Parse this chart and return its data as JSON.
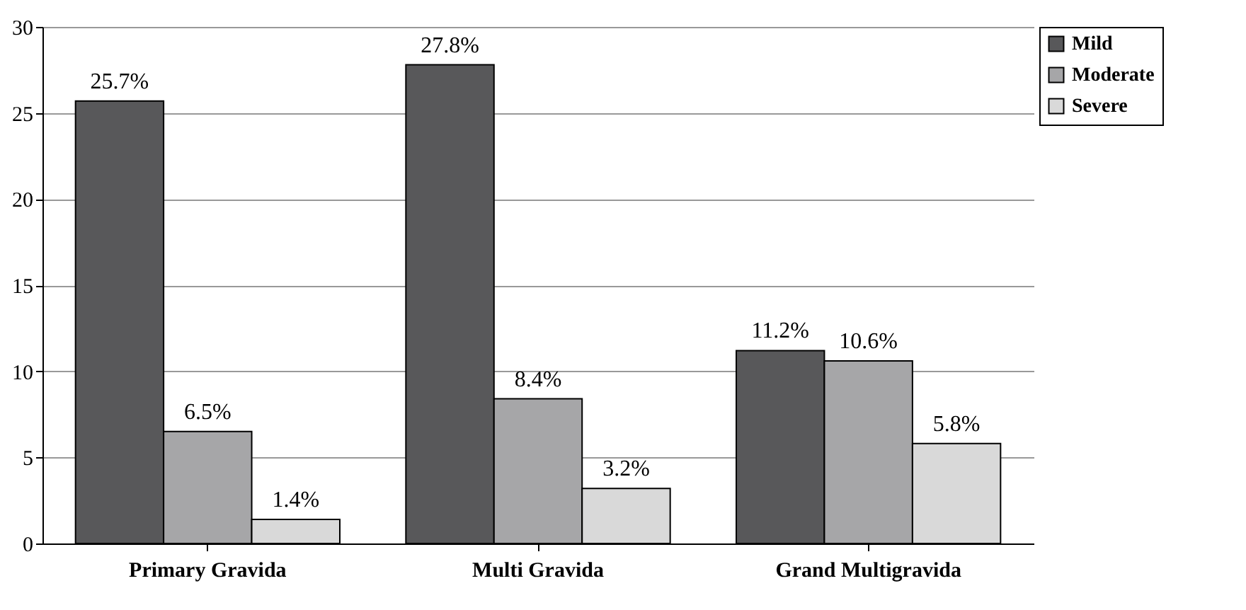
{
  "chart_data": {
    "type": "bar",
    "categories": [
      "Primary Gravida",
      "Multi Gravida",
      "Grand Multigravida"
    ],
    "series": [
      {
        "name": "Mild",
        "color": "#58585a",
        "values": [
          25.7,
          27.8,
          11.2
        ],
        "value_labels": [
          "25.7%",
          "27.8%",
          "11.2%"
        ]
      },
      {
        "name": "Moderate",
        "color": "#a6a6a8",
        "values": [
          6.5,
          8.4,
          10.6
        ],
        "value_labels": [
          "6.5%",
          "8.4%",
          "10.6%"
        ]
      },
      {
        "name": "Severe",
        "color": "#d9d9d9",
        "values": [
          1.4,
          3.2,
          5.8
        ],
        "value_labels": [
          "1.4%",
          "3.2%",
          "5.8%"
        ]
      }
    ],
    "ylim": [
      0,
      30
    ],
    "yticks": [
      0,
      5,
      10,
      15,
      20,
      25,
      30
    ],
    "grid": "y",
    "legend": "right"
  }
}
